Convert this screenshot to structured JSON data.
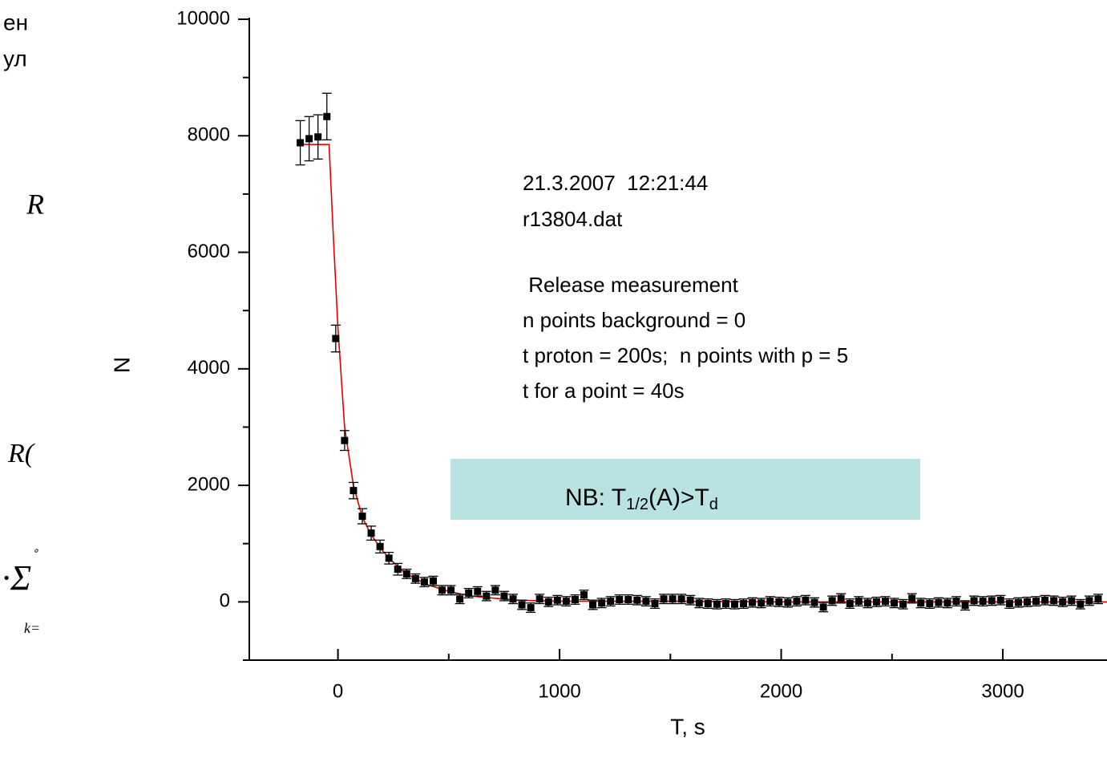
{
  "side_text": [
    "ен",
    "ул",
    "R",
    "R(",
    "·Σ",
    "k=",
    "∘"
  ],
  "chart_data": {
    "type": "scatter",
    "xlabel": "T, s",
    "ylabel": "N",
    "xlim": [
      -400,
      3470
    ],
    "ylim": [
      -1000,
      10000
    ],
    "xticks": [
      0,
      1000,
      2000,
      3000
    ],
    "xminorticks": [
      500,
      1500,
      2500
    ],
    "yticks": [
      0,
      2000,
      4000,
      6000,
      8000,
      10000
    ],
    "yminorticks": [
      -1000,
      1000,
      3000,
      5000,
      7000,
      9000
    ],
    "annotations": [
      "21.3.2007  12:21:44",
      "r13804.dat",
      " Release measurement",
      "n points background = 0",
      "t proton = 200s;  n points with p = 5",
      "t for a point = 40s"
    ],
    "note": [
      "NB: T",
      "1/2",
      "(A)>T",
      "d"
    ],
    "points": {
      "color": "#000000",
      "x": [
        -170,
        -130,
        -90,
        -50,
        -10,
        30,
        70,
        110,
        150,
        190,
        230,
        270,
        310,
        350,
        390,
        430,
        470,
        510,
        550,
        590,
        630,
        670,
        710,
        750,
        790,
        830,
        870,
        910,
        950,
        990,
        1030,
        1070,
        1110,
        1150,
        1190,
        1230,
        1270,
        1310,
        1350,
        1390,
        1430,
        1470,
        1510,
        1550,
        1590,
        1630,
        1670,
        1710,
        1750,
        1790,
        1830,
        1870,
        1910,
        1950,
        1990,
        2030,
        2070,
        2110,
        2150,
        2190,
        2230,
        2270,
        2310,
        2350,
        2390,
        2430,
        2470,
        2510,
        2550,
        2590,
        2630,
        2670,
        2710,
        2750,
        2790,
        2830,
        2870,
        2910,
        2950,
        2990,
        3030,
        3070,
        3110,
        3150,
        3190,
        3230,
        3270,
        3310,
        3350,
        3390,
        3430
      ],
      "values": [
        7880,
        7950,
        7980,
        8330,
        4520,
        2770,
        1910,
        1470,
        1180,
        950,
        750,
        560,
        480,
        400,
        340,
        360,
        200,
        200,
        50,
        150,
        180,
        100,
        200,
        100,
        50,
        -50,
        -100,
        50,
        0,
        30,
        10,
        40,
        120,
        -50,
        -20,
        10,
        40,
        40,
        30,
        10,
        -30,
        50,
        50,
        50,
        30,
        -20,
        -30,
        -40,
        -30,
        -40,
        -30,
        -10,
        -20,
        10,
        0,
        -10,
        10,
        30,
        -10,
        -90,
        20,
        60,
        -30,
        10,
        -20,
        0,
        10,
        -20,
        -40,
        60,
        -20,
        -30,
        -10,
        -20,
        10,
        -60,
        20,
        10,
        20,
        30,
        -30,
        -10,
        0,
        10,
        30,
        20,
        0,
        20,
        -40,
        20,
        50
      ],
      "errors": [
        380,
        380,
        380,
        400,
        230,
        170,
        140,
        130,
        120,
        110,
        100,
        100,
        80,
        80,
        80,
        80,
        80,
        80,
        80,
        80,
        80,
        80,
        80,
        80,
        80,
        80,
        80,
        80,
        80,
        80,
        80,
        80,
        80,
        80,
        80,
        80,
        80,
        80,
        80,
        80,
        80,
        80,
        80,
        80,
        80,
        80,
        80,
        80,
        80,
        80,
        80,
        80,
        80,
        80,
        80,
        80,
        80,
        80,
        80,
        80,
        80,
        80,
        80,
        80,
        80,
        80,
        80,
        80,
        80,
        80,
        80,
        80,
        80,
        80,
        80,
        80,
        80,
        80,
        80,
        80,
        80,
        80,
        80,
        80,
        80,
        80,
        80,
        80,
        80,
        80,
        80
      ]
    },
    "fit": {
      "color": "#e00000",
      "x": [
        -170,
        -40,
        -20,
        0,
        30,
        70,
        110,
        150,
        200,
        250,
        300,
        400,
        500,
        600,
        800,
        1000,
        1500,
        2000,
        3470
      ],
      "values": [
        7850,
        7850,
        6200,
        4700,
        3000,
        2000,
        1450,
        1150,
        880,
        680,
        500,
        300,
        180,
        100,
        30,
        10,
        10,
        0,
        0
      ]
    }
  }
}
